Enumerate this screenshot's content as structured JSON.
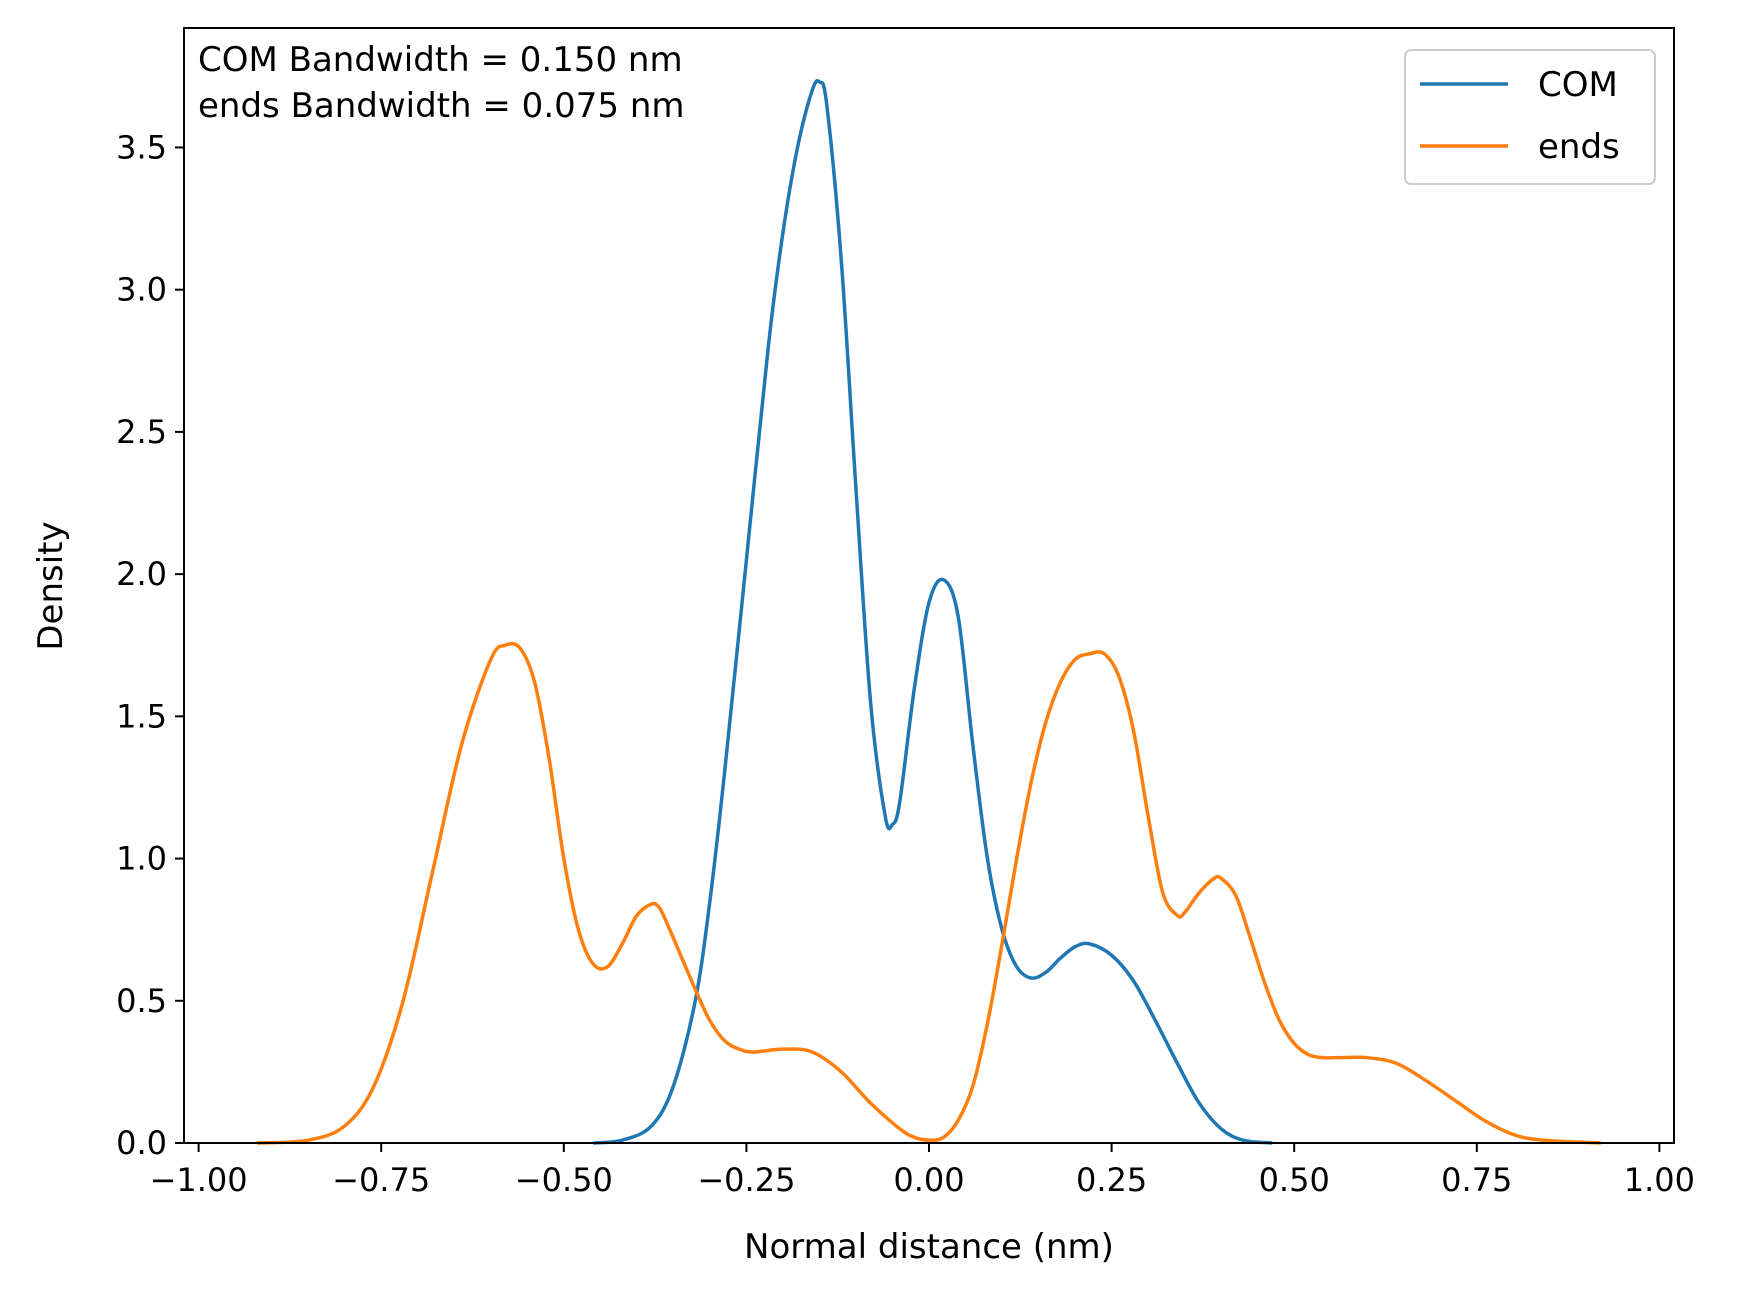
{
  "chart_data": {
    "type": "line",
    "xlabel": "Normal distance (nm)",
    "ylabel": "Density",
    "xlim": [
      -1.02,
      1.02
    ],
    "ylim": [
      0.0,
      3.92
    ],
    "xticks": [
      -1.0,
      -0.75,
      -0.5,
      -0.25,
      0.0,
      0.25,
      0.5,
      0.75,
      1.0
    ],
    "xtick_labels": [
      "−1.00",
      "−0.75",
      "−0.50",
      "−0.25",
      "0.00",
      "0.25",
      "0.50",
      "0.75",
      "1.00"
    ],
    "yticks": [
      0.0,
      0.5,
      1.0,
      1.5,
      2.0,
      2.5,
      3.0,
      3.5
    ],
    "ytick_labels": [
      "0.0",
      "0.5",
      "1.0",
      "1.5",
      "2.0",
      "2.5",
      "3.0",
      "3.5"
    ],
    "grid": false,
    "legend_position": "top-right",
    "annotations": [
      "COM Bandwidth = 0.150 nm",
      "ends Bandwidth = 0.075 nm"
    ],
    "series": [
      {
        "name": "COM",
        "color": "#1f77b4",
        "x": [
          -0.46,
          -0.42,
          -0.38,
          -0.35,
          -0.32,
          -0.3,
          -0.28,
          -0.25,
          -0.22,
          -0.2,
          -0.18,
          -0.16,
          -0.15,
          -0.14,
          -0.12,
          -0.1,
          -0.08,
          -0.06,
          -0.05,
          -0.04,
          -0.02,
          0.0,
          0.02,
          0.04,
          0.06,
          0.08,
          0.1,
          0.12,
          0.14,
          0.16,
          0.18,
          0.2,
          0.22,
          0.25,
          0.28,
          0.31,
          0.34,
          0.37,
          0.4,
          0.43,
          0.47
        ],
        "y": [
          0.0,
          0.01,
          0.06,
          0.2,
          0.5,
          0.85,
          1.3,
          2.05,
          2.8,
          3.2,
          3.5,
          3.7,
          3.73,
          3.65,
          3.1,
          2.3,
          1.55,
          1.15,
          1.12,
          1.2,
          1.6,
          1.9,
          1.98,
          1.85,
          1.4,
          1.0,
          0.75,
          0.62,
          0.58,
          0.6,
          0.65,
          0.69,
          0.7,
          0.66,
          0.57,
          0.43,
          0.28,
          0.14,
          0.05,
          0.01,
          0.0
        ]
      },
      {
        "name": "ends",
        "color": "#ff7f0e",
        "x": [
          -0.92,
          -0.85,
          -0.8,
          -0.76,
          -0.72,
          -0.68,
          -0.64,
          -0.6,
          -0.58,
          -0.56,
          -0.54,
          -0.52,
          -0.5,
          -0.48,
          -0.46,
          -0.44,
          -0.42,
          -0.4,
          -0.38,
          -0.37,
          -0.36,
          -0.34,
          -0.32,
          -0.3,
          -0.28,
          -0.26,
          -0.24,
          -0.2,
          -0.16,
          -0.12,
          -0.08,
          -0.04,
          -0.02,
          0.0,
          0.02,
          0.04,
          0.06,
          0.08,
          0.1,
          0.12,
          0.14,
          0.16,
          0.18,
          0.2,
          0.22,
          0.24,
          0.26,
          0.28,
          0.3,
          0.32,
          0.34,
          0.35,
          0.37,
          0.39,
          0.4,
          0.42,
          0.44,
          0.46,
          0.48,
          0.5,
          0.52,
          0.54,
          0.56,
          0.6,
          0.64,
          0.68,
          0.72,
          0.76,
          0.8,
          0.84,
          0.92
        ],
        "y": [
          0.0,
          0.01,
          0.06,
          0.2,
          0.5,
          0.95,
          1.4,
          1.7,
          1.75,
          1.74,
          1.62,
          1.35,
          1.0,
          0.75,
          0.63,
          0.62,
          0.7,
          0.8,
          0.84,
          0.83,
          0.78,
          0.66,
          0.54,
          0.43,
          0.36,
          0.33,
          0.32,
          0.33,
          0.32,
          0.25,
          0.14,
          0.05,
          0.02,
          0.01,
          0.02,
          0.08,
          0.2,
          0.42,
          0.7,
          1.0,
          1.27,
          1.48,
          1.62,
          1.7,
          1.72,
          1.72,
          1.64,
          1.45,
          1.15,
          0.88,
          0.8,
          0.81,
          0.88,
          0.93,
          0.93,
          0.87,
          0.72,
          0.56,
          0.43,
          0.35,
          0.31,
          0.3,
          0.3,
          0.3,
          0.28,
          0.22,
          0.15,
          0.08,
          0.03,
          0.01,
          0.0
        ]
      }
    ]
  }
}
